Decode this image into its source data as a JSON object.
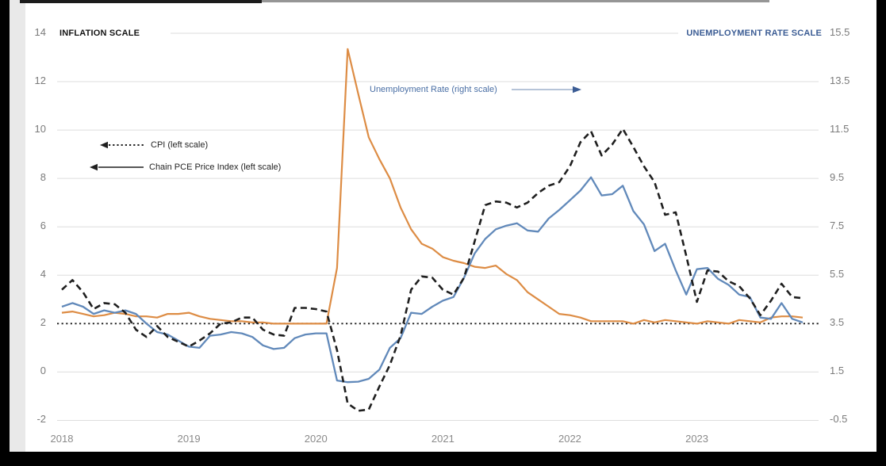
{
  "page": {
    "background": "#000000",
    "panel_background": "#ffffff",
    "left_strip_color": "#e9e9e9",
    "top_bar_dark_color": "#1b1b1b",
    "top_bar_gray_color": "#969696"
  },
  "chart_data": {
    "type": "line",
    "x_axis": {
      "tick_labels": [
        "2018",
        "2019",
        "2020",
        "2021",
        "2022",
        "2023"
      ],
      "months": [
        "2018-01",
        "2018-02",
        "2018-03",
        "2018-04",
        "2018-05",
        "2018-06",
        "2018-07",
        "2018-08",
        "2018-09",
        "2018-10",
        "2018-11",
        "2018-12",
        "2019-01",
        "2019-02",
        "2019-03",
        "2019-04",
        "2019-05",
        "2019-06",
        "2019-07",
        "2019-08",
        "2019-09",
        "2019-10",
        "2019-11",
        "2019-12",
        "2020-01",
        "2020-02",
        "2020-03",
        "2020-04",
        "2020-05",
        "2020-06",
        "2020-07",
        "2020-08",
        "2020-09",
        "2020-10",
        "2020-11",
        "2020-12",
        "2021-01",
        "2021-02",
        "2021-03",
        "2021-04",
        "2021-05",
        "2021-06",
        "2021-07",
        "2021-08",
        "2021-09",
        "2021-10",
        "2021-11",
        "2021-12",
        "2022-01",
        "2022-02",
        "2022-03",
        "2022-04",
        "2022-05",
        "2022-06",
        "2022-07",
        "2022-08",
        "2022-09",
        "2022-10",
        "2022-11",
        "2022-12",
        "2023-01",
        "2023-02",
        "2023-03",
        "2023-04",
        "2023-05",
        "2023-06",
        "2023-07",
        "2023-08",
        "2023-09",
        "2023-10",
        "2023-11"
      ]
    },
    "y_axis_left": {
      "title": "INFLATION SCALE",
      "ticks": [
        14,
        12,
        10,
        8,
        6,
        4,
        2,
        0,
        -2
      ],
      "range": [
        -2,
        14
      ],
      "tick_text_color": "#7b7b7b",
      "title_color": "#141414"
    },
    "y_axis_right": {
      "title": "UNEMPLOYMENT RATE SCALE",
      "ticks": [
        15.5,
        13.5,
        11.5,
        9.5,
        7.5,
        5.5,
        3.5,
        1.5,
        -0.5
      ],
      "range": [
        -0.5,
        15.5
      ],
      "tick_text_color": "#7b7b7b",
      "title_color": "#3b5c94"
    },
    "grid": true,
    "grid_color": "#dedede",
    "legend_position": "inside-left",
    "reference_line": {
      "value_left_scale": 2,
      "style": "dotted",
      "color": "#1f1f1f"
    },
    "series": [
      {
        "name": "CPI",
        "legend_label": "CPI (left scale)",
        "axis": "left",
        "style": "dashed",
        "color": "#1f1f1f",
        "values": [
          3.4,
          3.8,
          3.3,
          2.6,
          2.85,
          2.8,
          2.45,
          1.75,
          1.45,
          1.9,
          1.45,
          1.25,
          1.05,
          1.3,
          1.6,
          2.0,
          2.05,
          2.25,
          2.25,
          1.75,
          1.55,
          1.5,
          2.65,
          2.65,
          2.6,
          2.5,
          0.9,
          -1.3,
          -1.6,
          -1.55,
          -0.6,
          0.3,
          1.5,
          3.4,
          3.95,
          3.9,
          3.4,
          3.2,
          3.9,
          5.4,
          6.9,
          7.05,
          7.0,
          6.8,
          7.0,
          7.4,
          7.7,
          7.85,
          8.5,
          9.5,
          9.95,
          8.95,
          9.4,
          10.05,
          9.3,
          8.5,
          7.85,
          6.5,
          6.6,
          4.8,
          2.9,
          4.2,
          4.15,
          3.75,
          3.55,
          3.05,
          2.35,
          2.95,
          3.65,
          3.1,
          3.05
        ]
      },
      {
        "name": "Chain PCE Price Index",
        "legend_label": "Chain PCE Price Index (left scale)",
        "axis": "left",
        "style": "solid",
        "color": "#6189ba",
        "values": [
          2.7,
          2.85,
          2.7,
          2.4,
          2.55,
          2.45,
          2.55,
          2.4,
          2.0,
          1.65,
          1.55,
          1.3,
          1.05,
          1.0,
          1.5,
          1.55,
          1.65,
          1.6,
          1.45,
          1.1,
          0.95,
          1.0,
          1.4,
          1.55,
          1.6,
          1.6,
          -0.35,
          -0.42,
          -0.4,
          -0.28,
          0.1,
          1.0,
          1.4,
          2.45,
          2.4,
          2.7,
          2.95,
          3.1,
          3.9,
          4.9,
          5.5,
          5.9,
          6.05,
          6.15,
          5.85,
          5.8,
          6.35,
          6.7,
          7.1,
          7.5,
          8.05,
          7.3,
          7.35,
          7.7,
          6.65,
          6.1,
          5.0,
          5.3,
          4.2,
          3.2,
          4.25,
          4.3,
          3.85,
          3.6,
          3.2,
          3.1,
          2.25,
          2.2,
          2.85,
          2.2,
          2.05
        ]
      },
      {
        "name": "Unemployment Rate",
        "legend_label": "Unemployment Rate (right scale)",
        "axis": "right",
        "style": "solid",
        "color": "#dd8c44",
        "values": [
          3.95,
          4.0,
          3.9,
          3.8,
          3.85,
          3.95,
          3.9,
          3.8,
          3.8,
          3.75,
          3.9,
          3.9,
          3.95,
          3.8,
          3.7,
          3.65,
          3.6,
          3.6,
          3.55,
          3.55,
          3.5,
          3.5,
          3.5,
          3.5,
          3.5,
          3.5,
          5.8,
          14.85,
          13.0,
          11.2,
          10.3,
          9.5,
          8.3,
          7.4,
          6.8,
          6.6,
          6.25,
          6.1,
          6.0,
          5.85,
          5.8,
          5.9,
          5.55,
          5.3,
          4.8,
          4.5,
          4.2,
          3.9,
          3.85,
          3.75,
          3.6,
          3.6,
          3.6,
          3.6,
          3.5,
          3.65,
          3.55,
          3.65,
          3.6,
          3.55,
          3.5,
          3.6,
          3.55,
          3.5,
          3.65,
          3.6,
          3.55,
          3.75,
          3.8,
          3.8,
          3.75
        ]
      }
    ]
  }
}
